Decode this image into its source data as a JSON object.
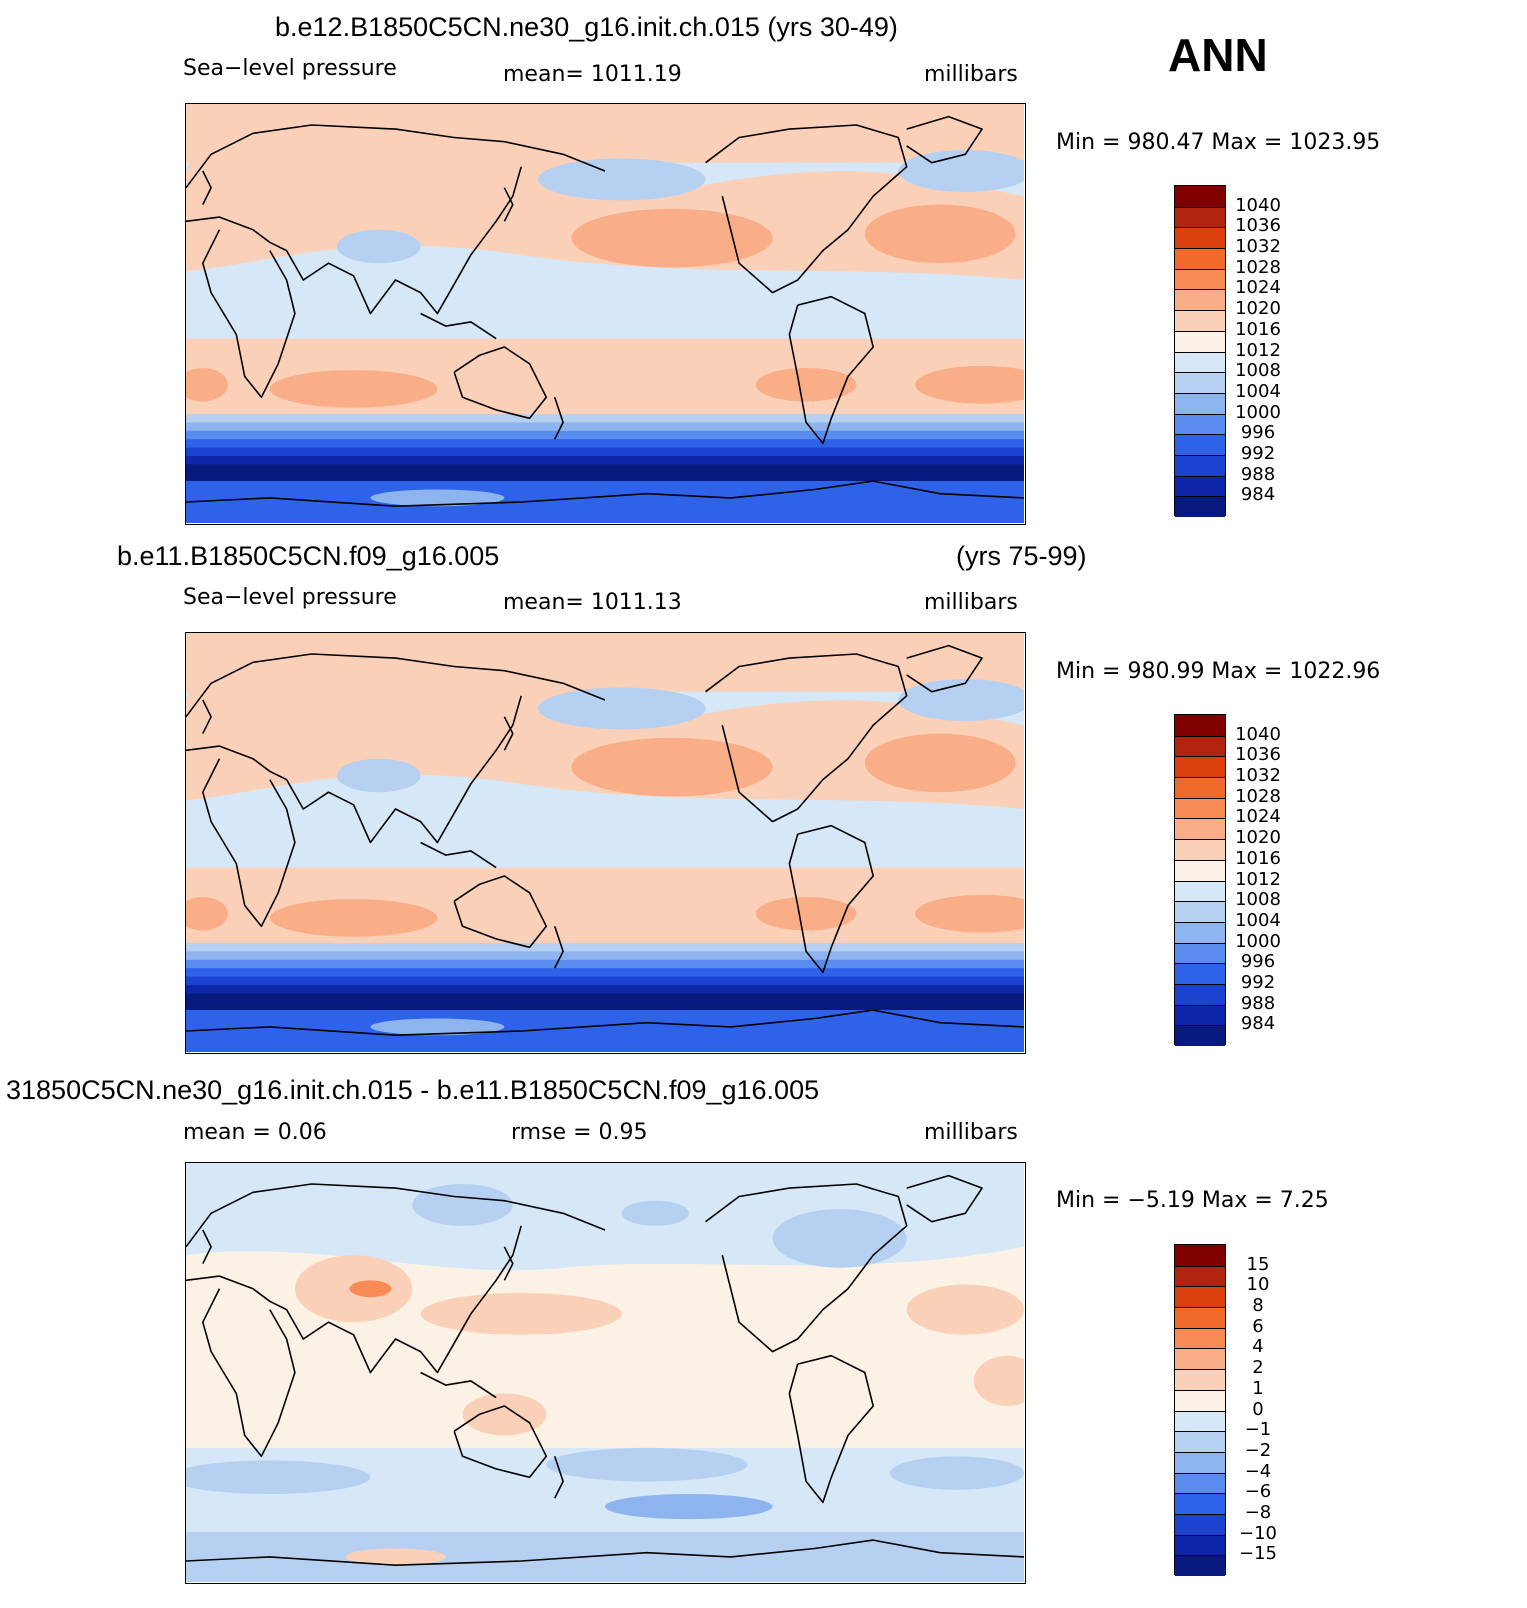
{
  "season": "ANN",
  "chart_data": [
    {
      "type": "heatmap",
      "title": "b.e12.B1850C5CN.ne30_g16.init.ch.015 (yrs 30-49)",
      "variable": "Sea−level pressure",
      "stat_text": "mean=  1011.19",
      "units": "millibars",
      "minmax_text": "Min  =  980.47  Max  =  1023.95",
      "min": 980.47,
      "max": 1023.95,
      "mean": 1011.19,
      "colorbar": {
        "labels": [
          "1040",
          "1036",
          "1032",
          "1028",
          "1024",
          "1020",
          "1016",
          "1012",
          "1008",
          "1004",
          "1000",
          "996",
          "992",
          "988",
          "984"
        ],
        "colors": [
          "#800000",
          "#b0230e",
          "#d9400e",
          "#f06a2c",
          "#f88a55",
          "#f9ae88",
          "#fad1b8",
          "#fbf1e4",
          "#d6e7f7",
          "#b6d0f2",
          "#8db4ee",
          "#5a8cef",
          "#2e62e8",
          "#1a44d0",
          "#0d27a8",
          "#061a80"
        ]
      }
    },
    {
      "type": "heatmap",
      "title_left": "b.e11.B1850C5CN.f09_g16.005",
      "title_right": "(yrs 75-99)",
      "variable": "Sea−level pressure",
      "stat_text": "mean=  1011.13",
      "units": "millibars",
      "minmax_text": "Min  =  980.99  Max  =  1022.96",
      "min": 980.99,
      "max": 1022.96,
      "mean": 1011.13,
      "colorbar": {
        "labels": [
          "1040",
          "1036",
          "1032",
          "1028",
          "1024",
          "1020",
          "1016",
          "1012",
          "1008",
          "1004",
          "1000",
          "996",
          "992",
          "988",
          "984"
        ],
        "colors": [
          "#800000",
          "#b0230e",
          "#d9400e",
          "#f06a2c",
          "#f88a55",
          "#f9ae88",
          "#fad1b8",
          "#fbf1e4",
          "#d6e7f7",
          "#b6d0f2",
          "#8db4ee",
          "#5a8cef",
          "#2e62e8",
          "#1a44d0",
          "#0d27a8",
          "#061a80"
        ]
      }
    },
    {
      "type": "heatmap",
      "title": "31850C5CN.ne30_g16.init.ch.015 - b.e11.B1850C5CN.f09_g16.005",
      "stat_mean_text": "mean  =     0.06",
      "stat_rmse_text": "rmse  =     0.95",
      "units": "millibars",
      "minmax_text": "Min  =   −5.19  Max  =      7.25",
      "min": -5.19,
      "max": 7.25,
      "mean": 0.06,
      "rmse": 0.95,
      "colorbar": {
        "labels": [
          "15",
          "10",
          "8",
          "6",
          "4",
          "2",
          "1",
          "0",
          "−1",
          "−2",
          "−4",
          "−6",
          "−8",
          "−10",
          "−15"
        ],
        "colors": [
          "#800000",
          "#b0230e",
          "#d9400e",
          "#f06a2c",
          "#f88a55",
          "#f9ae88",
          "#fad1b8",
          "#fbf1e4",
          "#d6e7f7",
          "#b6d0f2",
          "#8db4ee",
          "#5a8cef",
          "#2e62e8",
          "#1a44d0",
          "#0d27a8",
          "#061a80"
        ]
      }
    }
  ]
}
